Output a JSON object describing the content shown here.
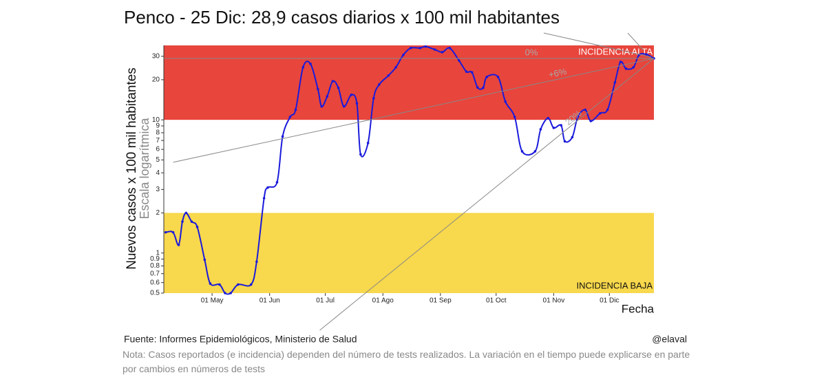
{
  "chart_data": {
    "type": "line",
    "title": "Penco - 25 Dic: 28,9 casos diarios x 100 mil habitantes",
    "y_label": "Nuevos casos x 100 mil habitantes",
    "y_sublabel": "Escala logarítmica",
    "x_label": "Fecha",
    "source": "Fuente: Informes Epidemiológicos, Ministerio de Salud",
    "author": "@elaval",
    "note": "Nota: Casos reportados (e incidencia) dependen del número de tests realizados. La variación en el tiempo puede explicarse en parte por cambios en números de tests",
    "log_y": true,
    "xlim": [
      "04-05",
      "12-25"
    ],
    "ylim": [
      0.5,
      36.2
    ],
    "yticks": [
      0.5,
      0.6,
      0.7,
      0.8,
      0.9,
      1,
      2,
      3,
      4,
      5,
      6,
      7,
      8,
      9,
      10,
      20,
      30
    ],
    "xticks": [
      {
        "value": "05-01",
        "label": "01 May"
      },
      {
        "value": "06-01",
        "label": "01 Jun"
      },
      {
        "value": "07-01",
        "label": "01 Jul"
      },
      {
        "value": "08-01",
        "label": "01 Ago"
      },
      {
        "value": "09-01",
        "label": "01 Sep"
      },
      {
        "value": "10-01",
        "label": "01 Oct"
      },
      {
        "value": "11-01",
        "label": "01 Nov"
      },
      {
        "value": "12-01",
        "label": "01 Dic"
      }
    ],
    "bands": [
      {
        "label": "INCIDENCIA ALTA",
        "from": 10,
        "to": 36.2,
        "color": "#e8453c"
      },
      {
        "label": "INCIDENCIA BAJA",
        "from": 0.5,
        "to": 2,
        "color": "#f8d84c"
      }
    ],
    "trend_lines": [
      {
        "label": "0%",
        "x0": "04-05",
        "y0": 28.9
      },
      {
        "label": "+6%",
        "x0": "04-10",
        "y0": 4.8
      },
      {
        "label": "20%",
        "x0": "06-28",
        "y0": 0.263
      }
    ],
    "x": [
      "04-06",
      "04-10",
      "04-13",
      "04-15",
      "04-17",
      "04-20",
      "04-23",
      "04-27",
      "04-30",
      "05-05",
      "05-08",
      "05-11",
      "05-15",
      "05-22",
      "05-25",
      "05-29",
      "05-31",
      "06-05",
      "06-08",
      "06-12",
      "06-15",
      "06-19",
      "06-23",
      "06-27",
      "06-29",
      "07-02",
      "07-05",
      "07-08",
      "07-11",
      "07-15",
      "07-18",
      "07-20",
      "07-24",
      "07-27",
      "07-30",
      "08-04",
      "08-08",
      "08-12",
      "08-16",
      "08-21",
      "08-24",
      "08-29",
      "09-02",
      "09-06",
      "09-11",
      "09-15",
      "09-18",
      "09-21",
      "09-24",
      "09-26",
      "10-02",
      "10-06",
      "10-11",
      "10-15",
      "10-22",
      "10-25",
      "10-29",
      "11-01",
      "11-05",
      "11-07",
      "11-11",
      "11-14",
      "11-18",
      "11-21",
      "11-26",
      "11-30",
      "12-04",
      "12-07",
      "12-10",
      "12-14",
      "12-17",
      "12-21",
      "12-25"
    ],
    "series": [
      {
        "name": "Casos diarios",
        "color": "#1a1adb",
        "values": [
          1.43,
          1.43,
          1.15,
          1.72,
          2.0,
          1.72,
          1.57,
          0.89,
          0.59,
          0.58,
          0.5,
          0.5,
          0.58,
          0.58,
          0.86,
          2.58,
          3.1,
          3.4,
          7.5,
          10.5,
          11.9,
          24.8,
          26.3,
          17,
          12.6,
          15,
          19.5,
          17.4,
          12.6,
          15.4,
          13.3,
          5.5,
          6.7,
          14.5,
          18.4,
          21.5,
          24.8,
          30.7,
          34.6,
          34.6,
          35.5,
          33.7,
          32.2,
          34.6,
          27.9,
          23,
          22.7,
          17.5,
          17.4,
          21,
          21,
          13.7,
          10.5,
          5.8,
          5.8,
          8.5,
          10.3,
          8.7,
          9.1,
          6.9,
          7.4,
          10.5,
          11.9,
          9.8,
          11.2,
          11.9,
          19.1,
          27.2,
          24.2,
          24.8,
          30.7,
          31,
          28.9
        ]
      }
    ]
  }
}
